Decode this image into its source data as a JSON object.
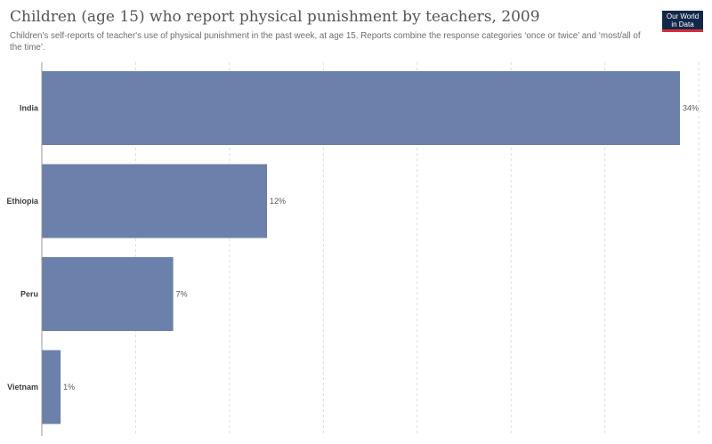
{
  "header": {
    "title": "Children (age 15) who report physical punishment by teachers, 2009",
    "subtitle": "Children's self-reports of teacher's use of physical punishment in the past week, at age 15. Reports combine the response categories ‘once or twice’ and ‘most/all of the time’."
  },
  "logo": {
    "line1": "Our World",
    "line2": "in Data"
  },
  "colors": {
    "bar": "#6b80aa",
    "logo_bg": "#12284a",
    "logo_accent": "#d42b3a",
    "grid": "#dddddd"
  },
  "chart_data": {
    "type": "bar",
    "orientation": "horizontal",
    "categories": [
      "India",
      "Ethiopia",
      "Peru",
      "Vietnam"
    ],
    "values": [
      34,
      12,
      7,
      1
    ],
    "value_labels": [
      "34%",
      "12%",
      "7%",
      "1%"
    ],
    "xlim": [
      0,
      35
    ],
    "grid": true,
    "title": "Children (age 15) who report physical punishment by teachers, 2009"
  }
}
